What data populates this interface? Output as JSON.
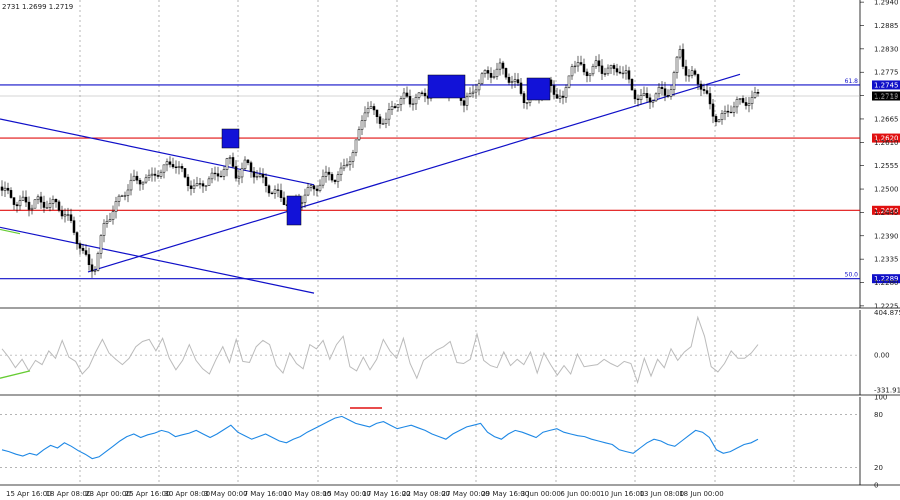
{
  "header": {
    "ohlc_text": "2731 1.2699 1.2719"
  },
  "chart_data": [
    {
      "type": "candlestick",
      "name": "price",
      "ylim": [
        1.222,
        1.2945
      ],
      "y_ticks": [
        "1.2940",
        "1.2885",
        "1.2830",
        "1.2775",
        "1.2720",
        "1.2665",
        "1.2610",
        "1.2555",
        "1.2500",
        "1.2445",
        "1.2390",
        "1.2335",
        "1.2280",
        "1.2225"
      ],
      "x_labels": [
        "15 Apr 16:00",
        "18 Apr 08:00",
        "23 Apr 00:00",
        "25 Apr 16:00",
        "30 Apr 08:00",
        "3 May 00:00",
        "7 May 16:00",
        "10 May 08:00",
        "15 May 00:00",
        "17 May 16:00",
        "22 May 08:00",
        "27 May 00:00",
        "29 May 16:00",
        "3 Jun 00:00",
        "6 Jun 00:00",
        "10 Jun 16:00",
        "13 Jun 08:00",
        "18 Jun 00:00"
      ],
      "current_price": {
        "value": 1.2719,
        "label": "1.2719"
      },
      "levels": [
        {
          "value": 1.2745,
          "label": "1.2745",
          "fib": "61.8",
          "color": "#1010c8"
        },
        {
          "value": 1.262,
          "label": "1.2620",
          "fib": "",
          "color": "#e01010"
        },
        {
          "value": 1.245,
          "label": "1.2450",
          "fib": "",
          "color": "#e01010"
        },
        {
          "value": 1.2289,
          "label": "1.2289",
          "fib": "50.0",
          "color": "#1010c8"
        }
      ],
      "close_path": [
        [
          0,
          1.2505
        ],
        [
          6,
          1.249
        ],
        [
          12,
          1.248
        ],
        [
          18,
          1.2465
        ],
        [
          24,
          1.247
        ],
        [
          30,
          1.246
        ],
        [
          36,
          1.2475
        ],
        [
          42,
          1.246
        ],
        [
          48,
          1.247
        ],
        [
          54,
          1.2465
        ],
        [
          60,
          1.245
        ],
        [
          66,
          1.2445
        ],
        [
          70,
          1.242
        ],
        [
          75,
          1.239
        ],
        [
          80,
          1.237
        ],
        [
          85,
          1.234
        ],
        [
          90,
          1.231
        ],
        [
          95,
          1.232
        ],
        [
          100,
          1.237
        ],
        [
          105,
          1.242
        ],
        [
          110,
          1.244
        ],
        [
          115,
          1.246
        ],
        [
          120,
          1.2475
        ],
        [
          126,
          1.25
        ],
        [
          132,
          1.252
        ],
        [
          138,
          1.2515
        ],
        [
          144,
          1.253
        ],
        [
          150,
          1.252
        ],
        [
          156,
          1.254
        ],
        [
          162,
          1.2545
        ],
        [
          168,
          1.2555
        ],
        [
          174,
          1.2565
        ],
        [
          180,
          1.2545
        ],
        [
          186,
          1.252
        ],
        [
          192,
          1.251
        ],
        [
          198,
          1.25
        ],
        [
          204,
          1.2515
        ],
        [
          210,
          1.253
        ],
        [
          216,
          1.2525
        ],
        [
          222,
          1.2545
        ],
        [
          228,
          1.257
        ],
        [
          232,
          1.2555
        ],
        [
          236,
          1.2535
        ],
        [
          240,
          1.254
        ],
        [
          246,
          1.256
        ],
        [
          252,
          1.2545
        ],
        [
          258,
          1.253
        ],
        [
          264,
          1.2515
        ],
        [
          270,
          1.25
        ],
        [
          276,
          1.249
        ],
        [
          282,
          1.2475
        ],
        [
          288,
          1.247
        ],
        [
          294,
          1.2465
        ],
        [
          300,
          1.2475
        ],
        [
          306,
          1.249
        ],
        [
          312,
          1.25
        ],
        [
          318,
          1.251
        ],
        [
          324,
          1.2525
        ],
        [
          330,
          1.2535
        ],
        [
          336,
          1.2525
        ],
        [
          342,
          1.254
        ],
        [
          348,
          1.257
        ],
        [
          354,
          1.259
        ],
        [
          358,
          1.262
        ],
        [
          362,
          1.2665
        ],
        [
          366,
          1.27
        ],
        [
          370,
          1.269
        ],
        [
          374,
          1.2675
        ],
        [
          380,
          1.2665
        ],
        [
          386,
          1.266
        ],
        [
          392,
          1.269
        ],
        [
          398,
          1.271
        ],
        [
          404,
          1.2715
        ],
        [
          410,
          1.2705
        ],
        [
          416,
          1.272
        ],
        [
          422,
          1.2715
        ],
        [
          428,
          1.2725
        ],
        [
          434,
          1.2735
        ],
        [
          440,
          1.274
        ],
        [
          446,
          1.273
        ],
        [
          452,
          1.2735
        ],
        [
          458,
          1.274
        ],
        [
          464,
          1.27
        ],
        [
          470,
          1.2715
        ],
        [
          476,
          1.2745
        ],
        [
          482,
          1.2765
        ],
        [
          488,
          1.277
        ],
        [
          494,
          1.2775
        ],
        [
          500,
          1.2785
        ],
        [
          506,
          1.277
        ],
        [
          512,
          1.2755
        ],
        [
          518,
          1.274
        ],
        [
          524,
          1.2715
        ],
        [
          530,
          1.2705
        ],
        [
          536,
          1.272
        ],
        [
          542,
          1.2735
        ],
        [
          548,
          1.2745
        ],
        [
          554,
          1.273
        ],
        [
          560,
          1.272
        ],
        [
          564,
          1.27
        ],
        [
          568,
          1.276
        ],
        [
          572,
          1.28
        ],
        [
          578,
          1.279
        ],
        [
          584,
          1.2775
        ],
        [
          590,
          1.278
        ],
        [
          596,
          1.279
        ],
        [
          602,
          1.278
        ],
        [
          608,
          1.2785
        ],
        [
          614,
          1.2775
        ],
        [
          620,
          1.2785
        ],
        [
          626,
          1.277
        ],
        [
          630,
          1.274
        ],
        [
          636,
          1.272
        ],
        [
          642,
          1.2715
        ],
        [
          648,
          1.271
        ],
        [
          654,
          1.272
        ],
        [
          660,
          1.273
        ],
        [
          666,
          1.2725
        ],
        [
          672,
          1.274
        ],
        [
          676,
          1.279
        ],
        [
          680,
          1.283
        ],
        [
          684,
          1.279
        ],
        [
          688,
          1.276
        ],
        [
          694,
          1.277
        ],
        [
          700,
          1.275
        ],
        [
          706,
          1.272
        ],
        [
          712,
          1.268
        ],
        [
          718,
          1.2665
        ],
        [
          724,
          1.267
        ],
        [
          730,
          1.269
        ],
        [
          736,
          1.2705
        ],
        [
          742,
          1.27
        ],
        [
          748,
          1.271
        ],
        [
          754,
          1.2715
        ],
        [
          758,
          1.2719
        ]
      ]
    },
    {
      "type": "line",
      "name": "oscillator",
      "ylim": [
        -380,
        430
      ],
      "y_ticks": [
        "404.8759",
        "0.00",
        "-331.916"
      ],
      "color": "#bbbbbb",
      "values": [
        60,
        -20,
        -120,
        -40,
        -150,
        -50,
        -90,
        40,
        -30,
        140,
        -20,
        -60,
        -180,
        -110,
        30,
        150,
        20,
        -40,
        -90,
        -30,
        80,
        130,
        150,
        40,
        160,
        -30,
        -140,
        -50,
        100,
        -50,
        -130,
        -180,
        -40,
        80,
        -70,
        150,
        -60,
        -70,
        80,
        140,
        100,
        -100,
        -170,
        20,
        -80,
        -130,
        100,
        60,
        140,
        -40,
        100,
        180,
        -110,
        -150,
        -20,
        -140,
        -40,
        150,
        40,
        -30,
        160,
        -80,
        -220,
        -50,
        0,
        50,
        80,
        130,
        -70,
        -80,
        -40,
        200,
        -50,
        -100,
        -120,
        30,
        -100,
        -40,
        -90,
        30,
        -170,
        20,
        -90,
        -190,
        -100,
        -180,
        10,
        -110,
        -100,
        -90,
        -40,
        -80,
        -110,
        -60,
        -80,
        -260,
        -30,
        -200,
        -40,
        -120,
        60,
        -50,
        30,
        80,
        360,
        180,
        -110,
        -160,
        -80,
        40,
        -30,
        -30,
        20,
        100
      ]
    },
    {
      "type": "line",
      "name": "rsi",
      "ylim": [
        0,
        100
      ],
      "y_ticks": [
        "100",
        "80",
        "20",
        "0"
      ],
      "color": "#1e88e5",
      "values": [
        40,
        38,
        35,
        33,
        36,
        34,
        40,
        45,
        42,
        48,
        44,
        39,
        35,
        30,
        32,
        38,
        44,
        50,
        55,
        58,
        54,
        57,
        59,
        62,
        60,
        55,
        57,
        59,
        62,
        58,
        54,
        58,
        63,
        68,
        60,
        56,
        52,
        55,
        58,
        54,
        50,
        48,
        52,
        55,
        60,
        64,
        68,
        72,
        76,
        78,
        74,
        70,
        68,
        66,
        70,
        72,
        68,
        64,
        66,
        68,
        65,
        62,
        58,
        55,
        52,
        58,
        62,
        66,
        68,
        70,
        60,
        55,
        52,
        58,
        62,
        60,
        57,
        54,
        60,
        62,
        64,
        60,
        58,
        56,
        55,
        52,
        50,
        48,
        46,
        40,
        38,
        36,
        42,
        48,
        52,
        50,
        46,
        44,
        50,
        56,
        62,
        60,
        54,
        40,
        36,
        38,
        42,
        46,
        48,
        52
      ]
    }
  ]
}
